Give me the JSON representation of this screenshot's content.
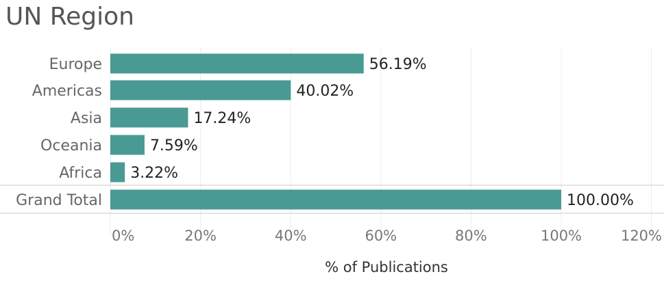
{
  "chart_data": {
    "type": "bar",
    "orientation": "horizontal",
    "title": "UN Region",
    "xlabel": "% of Publications",
    "categories": [
      "Europe",
      "Americas",
      "Asia",
      "Oceania",
      "Africa",
      "Grand Total"
    ],
    "values": [
      56.19,
      40.02,
      17.24,
      7.59,
      3.22,
      100.0
    ],
    "value_labels": [
      "56.19%",
      "40.02%",
      "17.24%",
      "7.59%",
      "3.22%",
      "100.00%"
    ],
    "xlim": [
      0,
      120
    ],
    "xticks": [
      0,
      20,
      40,
      60,
      80,
      100,
      120
    ],
    "xtick_labels": [
      "0%",
      "20%",
      "40%",
      "60%",
      "80%",
      "100%",
      "120%"
    ],
    "grid": true,
    "bar_color": "#4a9a94"
  }
}
